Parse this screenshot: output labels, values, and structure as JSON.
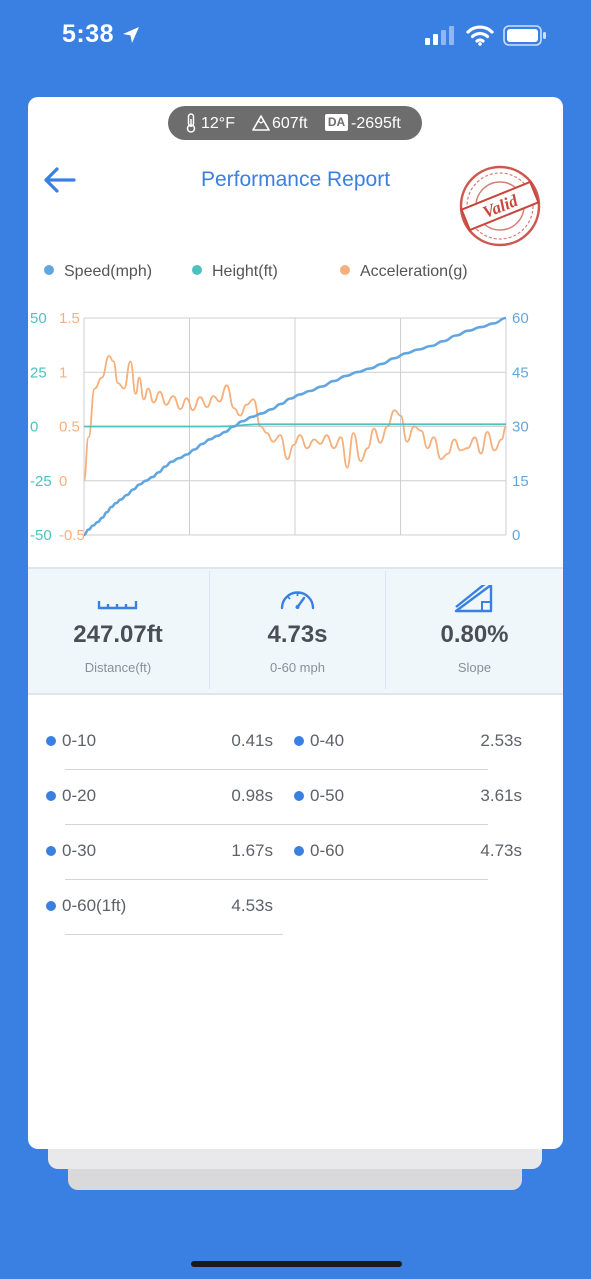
{
  "status_bar": {
    "time": "5:38"
  },
  "conditions": {
    "temperature": "12°F",
    "altitude": "607ft",
    "da_badge": "DA",
    "density_altitude": "-2695ft"
  },
  "header": {
    "title": "Performance Report",
    "stamp_text": "Valid"
  },
  "chart_data": {
    "type": "line",
    "legend_placement": "top",
    "grid": true,
    "axes": {
      "speed": {
        "side": "right",
        "range": [
          0,
          60
        ],
        "ticks": [
          "60",
          "45",
          "30",
          "15",
          "0"
        ],
        "color": "#62a6e0"
      },
      "height": {
        "side": "left",
        "range": [
          -50,
          50
        ],
        "ticks": [
          "50",
          "25",
          "0",
          "-25",
          "-50"
        ],
        "color": "#4ec0c0"
      },
      "acceleration": {
        "side": "left",
        "range": [
          -0.5,
          1.5
        ],
        "ticks": [
          "1.5",
          "1",
          "0.5",
          "0",
          "-0.5"
        ],
        "color": "#f5b07d"
      }
    },
    "x_range": [
      0,
      4.73
    ],
    "series": [
      {
        "name": "Speed(mph)",
        "color": "#62a6e0",
        "axis": "speed",
        "x": [
          0,
          0.41,
          0.98,
          1.67,
          2.53,
          3.61,
          4.73
        ],
        "y": [
          0,
          10,
          20,
          30,
          40,
          50,
          60
        ]
      },
      {
        "name": "Height(ft)",
        "color": "#4ec0c0",
        "axis": "height",
        "x": [
          0,
          0.5,
          1.0,
          1.5,
          2.0,
          2.5,
          3.0,
          3.5,
          4.0,
          4.5,
          4.73
        ],
        "y": [
          0,
          0,
          0,
          0,
          1,
          1,
          1,
          1,
          1,
          1,
          1
        ]
      },
      {
        "name": "Acceleration(g)",
        "color": "#f5b07d",
        "axis": "acceleration",
        "x": [
          0,
          0.05,
          0.12,
          0.2,
          0.28,
          0.33,
          0.38,
          0.45,
          0.52,
          0.58,
          0.62,
          0.67,
          0.72,
          0.78,
          0.85,
          0.92,
          1.0,
          1.08,
          1.15,
          1.22,
          1.3,
          1.38,
          1.45,
          1.52,
          1.6,
          1.68,
          1.75,
          1.82,
          1.9,
          1.98,
          2.05,
          2.12,
          2.2,
          2.28,
          2.35,
          2.42,
          2.5,
          2.58,
          2.65,
          2.72,
          2.8,
          2.88,
          2.95,
          3.02,
          3.1,
          3.18,
          3.25,
          3.32,
          3.4,
          3.48,
          3.55,
          3.62,
          3.7,
          3.78,
          3.85,
          3.92,
          4.0,
          4.08,
          4.15,
          4.22,
          4.3,
          4.38,
          4.45,
          4.52,
          4.6,
          4.68,
          4.73
        ],
        "y": [
          0.0,
          0.4,
          0.85,
          0.95,
          1.15,
          1.1,
          0.9,
          0.85,
          1.1,
          0.8,
          0.95,
          0.75,
          0.85,
          0.72,
          0.82,
          0.7,
          0.78,
          0.66,
          0.76,
          0.65,
          0.77,
          0.68,
          0.78,
          0.73,
          0.88,
          0.67,
          0.6,
          0.7,
          0.75,
          0.5,
          0.44,
          0.36,
          0.42,
          0.2,
          0.33,
          0.42,
          0.3,
          0.38,
          0.34,
          0.42,
          0.3,
          0.4,
          0.12,
          0.44,
          0.18,
          0.3,
          0.48,
          0.35,
          0.5,
          0.65,
          0.6,
          0.36,
          0.5,
          0.46,
          0.3,
          0.4,
          0.2,
          0.25,
          0.38,
          0.28,
          0.3,
          0.4,
          0.25,
          0.45,
          0.28,
          0.38,
          0.5
        ]
      }
    ]
  },
  "stats": [
    {
      "value": "247.07ft",
      "label": "Distance(ft)"
    },
    {
      "value": "4.73s",
      "label": "0-60 mph"
    },
    {
      "value": "0.80%",
      "label": "Slope"
    }
  ],
  "splits": [
    {
      "label": "0-10",
      "time": "0.41s"
    },
    {
      "label": "0-40",
      "time": "2.53s"
    },
    {
      "label": "0-20",
      "time": "0.98s"
    },
    {
      "label": "0-50",
      "time": "3.61s"
    },
    {
      "label": "0-30",
      "time": "1.67s"
    },
    {
      "label": "0-60",
      "time": "4.73s"
    },
    {
      "label": "0-60(1ft)",
      "time": "4.53s"
    }
  ]
}
